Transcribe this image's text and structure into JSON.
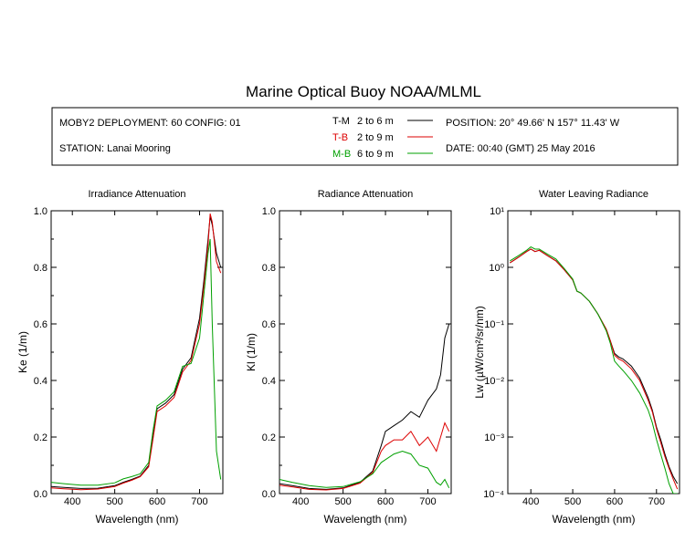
{
  "title": "Marine Optical Buoy NOAA/MLML",
  "info": {
    "deployment": "MOBY2 DEPLOYMENT: 60 CONFIG: 01",
    "station": "STATION: Lanai Mooring",
    "position": "POSITION: 20° 49.66' N   157° 11.43' W",
    "date": "DATE: 00:40 (GMT) 25 May 2016"
  },
  "legend": [
    {
      "code": "T-M",
      "range": "2 to 6  m",
      "color": "#000000"
    },
    {
      "code": "T-B",
      "range": "2 to 9  m",
      "color": "#dd0000"
    },
    {
      "code": "M-B",
      "range": "6 to 9  m",
      "color": "#00a000"
    }
  ],
  "chart_data": [
    {
      "type": "line",
      "title": "Irradiance Attenuation",
      "xlabel": "Wavelength (nm)",
      "ylabel": "Ke  (1/m)",
      "xlim": [
        350,
        755
      ],
      "ylim": [
        0,
        1.0
      ],
      "xticks": [
        400,
        500,
        600,
        700
      ],
      "yticks": [
        0.0,
        0.2,
        0.4,
        0.6,
        0.8,
        1.0
      ],
      "ytick_labels": [
        "0.0",
        "0.2",
        "0.4",
        "0.6",
        "0.8",
        "1.0"
      ],
      "series": [
        {
          "name": "T-M",
          "color": "#000000",
          "x": [
            350,
            380,
            420,
            460,
            500,
            520,
            540,
            560,
            580,
            590,
            600,
            620,
            640,
            660,
            680,
            700,
            710,
            720,
            725,
            730,
            740,
            750
          ],
          "y": [
            0.025,
            0.022,
            0.018,
            0.019,
            0.028,
            0.04,
            0.05,
            0.062,
            0.1,
            0.2,
            0.3,
            0.32,
            0.35,
            0.44,
            0.48,
            0.62,
            0.75,
            0.9,
            0.98,
            0.95,
            0.85,
            0.8
          ]
        },
        {
          "name": "T-B",
          "color": "#dd0000",
          "x": [
            350,
            380,
            420,
            460,
            500,
            520,
            540,
            560,
            580,
            590,
            600,
            620,
            640,
            660,
            680,
            700,
            710,
            720,
            725,
            730,
            740,
            750
          ],
          "y": [
            0.02,
            0.017,
            0.014,
            0.016,
            0.025,
            0.037,
            0.047,
            0.06,
            0.095,
            0.19,
            0.29,
            0.31,
            0.34,
            0.43,
            0.47,
            0.6,
            0.73,
            0.88,
            0.99,
            0.96,
            0.82,
            0.78
          ]
        },
        {
          "name": "M-B",
          "color": "#00a000",
          "x": [
            350,
            380,
            420,
            460,
            500,
            520,
            540,
            560,
            580,
            590,
            600,
            620,
            640,
            660,
            680,
            700,
            710,
            720,
            725,
            730,
            740,
            750
          ],
          "y": [
            0.04,
            0.035,
            0.03,
            0.03,
            0.038,
            0.052,
            0.06,
            0.07,
            0.11,
            0.22,
            0.31,
            0.33,
            0.36,
            0.45,
            0.46,
            0.55,
            0.7,
            0.85,
            0.9,
            0.6,
            0.15,
            0.05
          ]
        }
      ]
    },
    {
      "type": "line",
      "title": "Radiance Attenuation",
      "xlabel": "Wavelength (nm)",
      "ylabel": "Kl  (1/m)",
      "xlim": [
        350,
        755
      ],
      "ylim": [
        0,
        1.0
      ],
      "xticks": [
        400,
        500,
        600,
        700
      ],
      "yticks": [
        0.0,
        0.2,
        0.4,
        0.6,
        0.8,
        1.0
      ],
      "ytick_labels": [
        "0.0",
        "0.2",
        "0.4",
        "0.6",
        "0.8",
        "1.0"
      ],
      "series": [
        {
          "name": "T-M",
          "color": "#000000",
          "x": [
            350,
            380,
            420,
            460,
            500,
            540,
            570,
            590,
            600,
            610,
            620,
            640,
            660,
            680,
            700,
            720,
            730,
            740,
            750
          ],
          "y": [
            0.035,
            0.028,
            0.018,
            0.015,
            0.02,
            0.04,
            0.08,
            0.17,
            0.22,
            0.23,
            0.24,
            0.26,
            0.29,
            0.27,
            0.33,
            0.37,
            0.42,
            0.55,
            0.6
          ]
        },
        {
          "name": "T-B",
          "color": "#dd0000",
          "x": [
            350,
            380,
            420,
            460,
            500,
            540,
            570,
            590,
            600,
            610,
            620,
            640,
            660,
            680,
            700,
            720,
            730,
            740,
            750
          ],
          "y": [
            0.03,
            0.024,
            0.015,
            0.013,
            0.018,
            0.037,
            0.075,
            0.15,
            0.17,
            0.18,
            0.19,
            0.19,
            0.22,
            0.17,
            0.2,
            0.15,
            0.2,
            0.25,
            0.22
          ]
        },
        {
          "name": "M-B",
          "color": "#00a000",
          "x": [
            350,
            380,
            420,
            460,
            500,
            540,
            570,
            590,
            600,
            610,
            620,
            640,
            660,
            680,
            700,
            720,
            730,
            740,
            750
          ],
          "y": [
            0.05,
            0.04,
            0.028,
            0.022,
            0.025,
            0.042,
            0.07,
            0.11,
            0.12,
            0.13,
            0.14,
            0.15,
            0.14,
            0.1,
            0.09,
            0.04,
            0.03,
            0.05,
            0.02
          ]
        }
      ]
    },
    {
      "type": "line",
      "title": "Water Leaving Radiance",
      "xlabel": "Wavelength (nm)",
      "ylabel": "Lw  (µW/cm²/sr/nm)",
      "yscale": "log",
      "xlim": [
        345,
        755
      ],
      "ylim": [
        0.0001,
        10
      ],
      "xticks": [
        400,
        500,
        600,
        700
      ],
      "yticks": [
        0.0001,
        0.001,
        0.01,
        0.1,
        1,
        10
      ],
      "ytick_labels": [
        "10⁻⁴",
        "10⁻³",
        "10⁻²",
        "10⁻¹",
        "10⁰",
        "10¹"
      ],
      "series": [
        {
          "name": "T-M",
          "color": "#000000",
          "x": [
            350,
            370,
            390,
            400,
            410,
            420,
            440,
            460,
            480,
            500,
            510,
            520,
            540,
            560,
            580,
            590,
            600,
            610,
            620,
            640,
            660,
            680,
            690,
            700,
            710,
            720,
            730,
            740,
            750
          ],
          "y": [
            1.2,
            1.5,
            1.9,
            2.1,
            1.9,
            2.0,
            1.6,
            1.3,
            0.9,
            0.6,
            0.38,
            0.35,
            0.25,
            0.15,
            0.08,
            0.05,
            0.03,
            0.026,
            0.024,
            0.018,
            0.011,
            0.005,
            0.003,
            0.0015,
            0.0009,
            0.0005,
            0.0003,
            0.0002,
            0.00015
          ]
        },
        {
          "name": "T-B",
          "color": "#dd0000",
          "x": [
            350,
            370,
            390,
            400,
            410,
            420,
            440,
            460,
            480,
            500,
            510,
            520,
            540,
            560,
            580,
            590,
            600,
            610,
            620,
            640,
            660,
            680,
            690,
            700,
            710,
            720,
            730,
            740,
            750
          ],
          "y": [
            1.2,
            1.5,
            1.9,
            2.1,
            1.9,
            2.0,
            1.6,
            1.3,
            0.9,
            0.6,
            0.38,
            0.35,
            0.25,
            0.15,
            0.08,
            0.05,
            0.028,
            0.024,
            0.022,
            0.016,
            0.01,
            0.0045,
            0.0028,
            0.0014,
            0.0008,
            0.00045,
            0.00028,
            0.00018,
            0.00012
          ]
        },
        {
          "name": "M-B",
          "color": "#00a000",
          "x": [
            350,
            370,
            390,
            400,
            410,
            420,
            440,
            460,
            480,
            500,
            510,
            520,
            540,
            560,
            580,
            590,
            600,
            610,
            620,
            640,
            660,
            680,
            690,
            700,
            710,
            720,
            730,
            740,
            750
          ],
          "y": [
            1.3,
            1.6,
            2.0,
            2.3,
            2.1,
            2.1,
            1.7,
            1.4,
            0.95,
            0.62,
            0.38,
            0.35,
            0.25,
            0.15,
            0.075,
            0.045,
            0.022,
            0.018,
            0.015,
            0.01,
            0.006,
            0.003,
            0.0018,
            0.0009,
            0.0005,
            0.00028,
            0.00015,
            0.0001,
            0.0001
          ]
        }
      ]
    }
  ]
}
